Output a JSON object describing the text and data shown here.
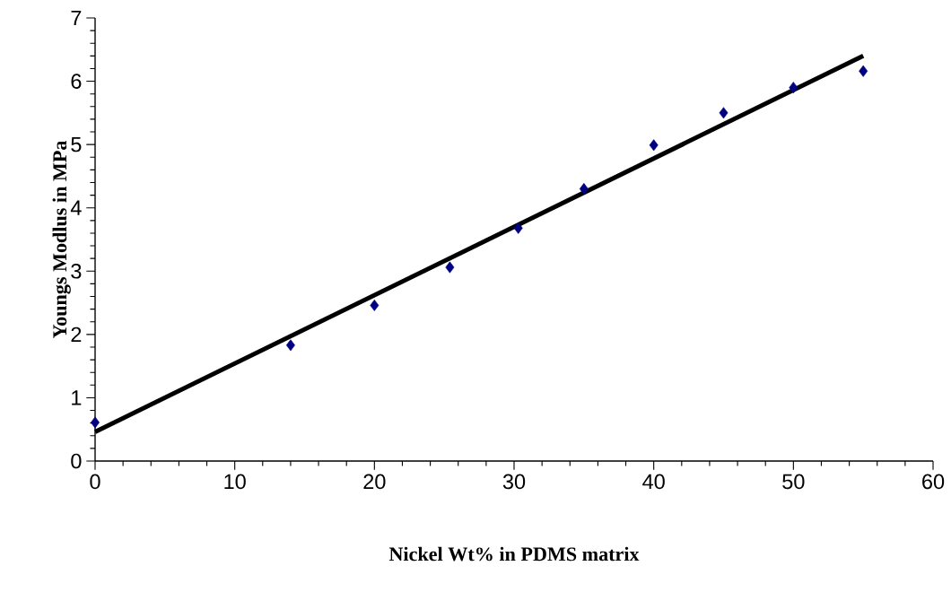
{
  "chart_data": {
    "type": "scatter",
    "xlabel": "Nickel  Wt% in PDMS matrix",
    "ylabel": "Youngs Modlus in MPa",
    "xlim": [
      0,
      60
    ],
    "ylim": [
      0,
      7
    ],
    "xticks": [
      0,
      10,
      20,
      30,
      40,
      50,
      60
    ],
    "yticks": [
      0,
      1,
      2,
      3,
      4,
      5,
      6,
      7
    ],
    "series": [
      {
        "type": "scatter",
        "color": "#000080",
        "marker": "diamond",
        "x": [
          0,
          14,
          20,
          25.4,
          30.3,
          35,
          40,
          45,
          50,
          55
        ],
        "values": [
          0.61,
          1.83,
          2.46,
          3.06,
          3.68,
          4.3,
          4.99,
          5.5,
          5.9,
          6.16
        ]
      },
      {
        "type": "line",
        "color": "#000000",
        "marker": "none",
        "line_style": "solid",
        "x": [
          0,
          55
        ],
        "values": [
          0.46,
          6.4
        ]
      }
    ]
  }
}
